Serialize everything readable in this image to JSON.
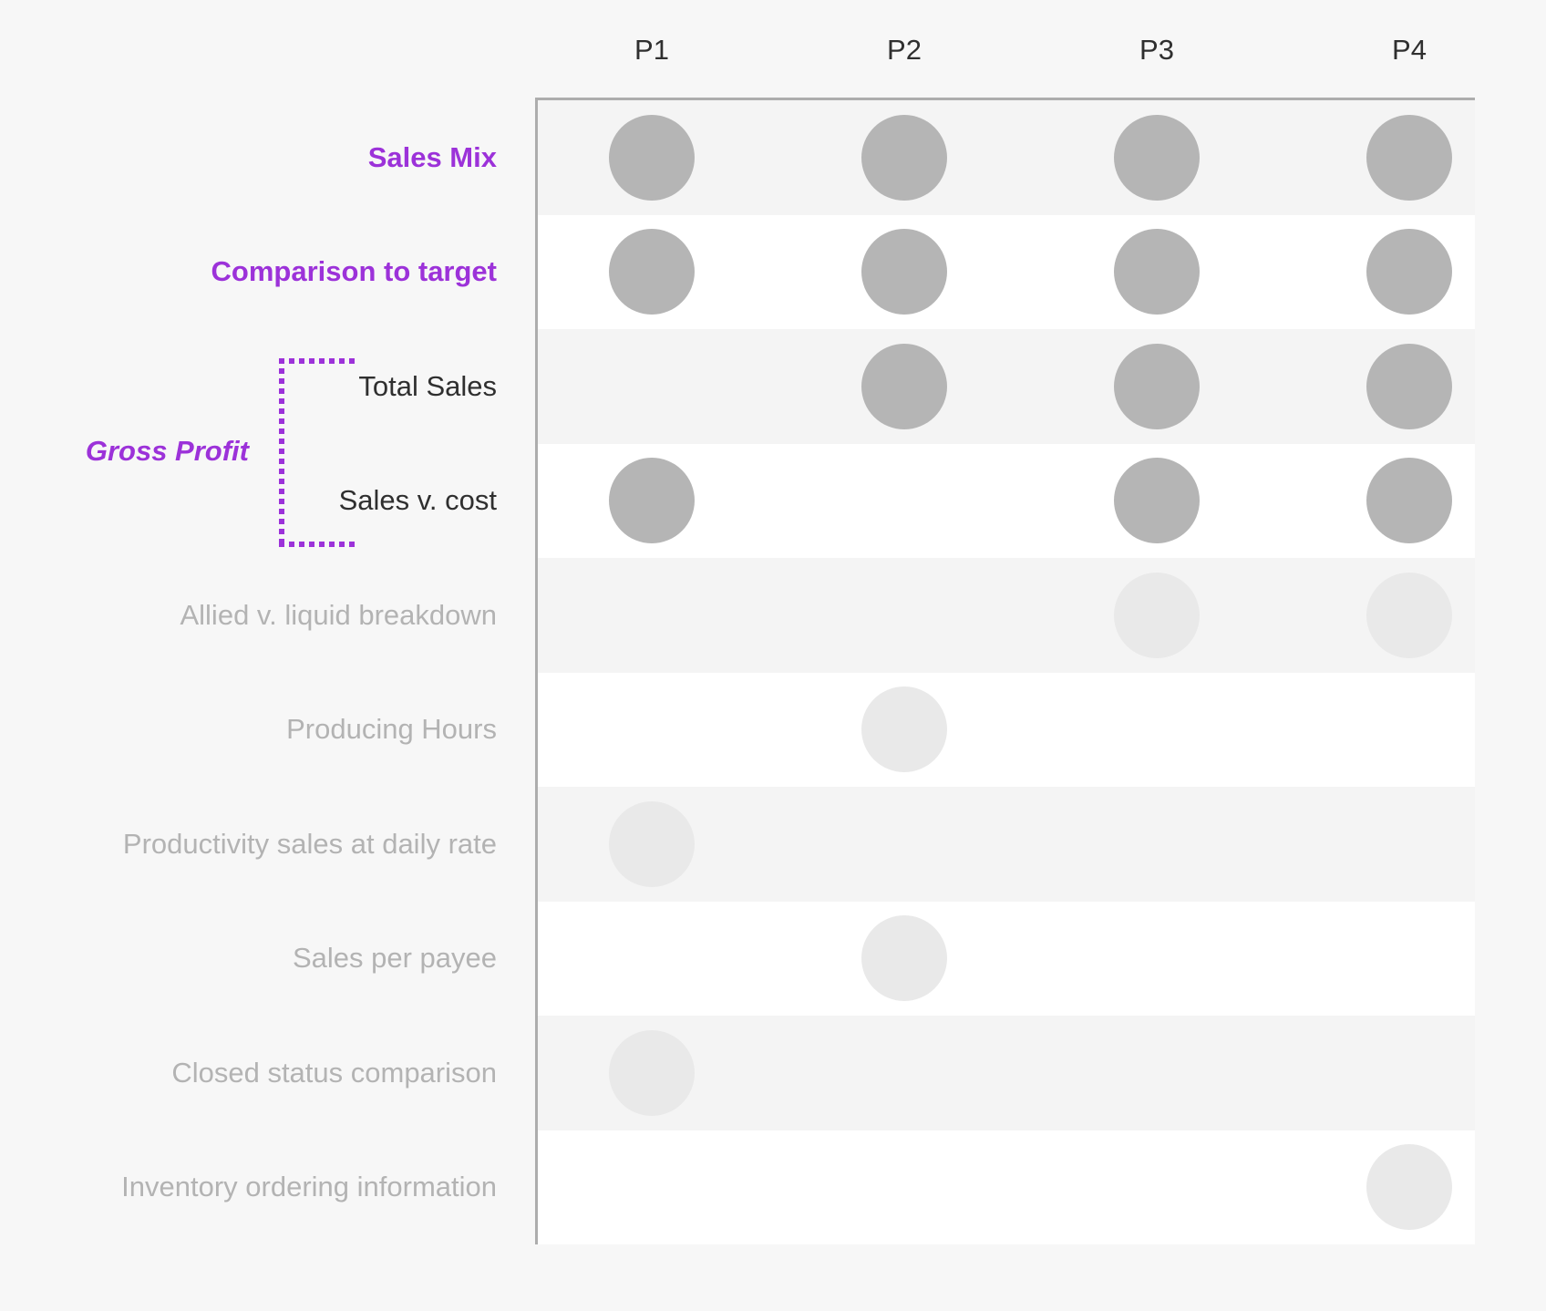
{
  "theme": {
    "page_bg": "#f7f7f7",
    "stripe_gray": "#f4f4f4",
    "stripe_white": "#ffffff",
    "axis_line": "#adadad",
    "dot_dark": "#b5b5b5",
    "dot_light": "#e9e9e9",
    "accent_purple": "#9c32d9",
    "text_dark": "#2f2f2f",
    "text_muted": "#b3b3b3"
  },
  "chart_data": {
    "type": "heatmap",
    "title": "",
    "columns": [
      "P1",
      "P2",
      "P3",
      "P4"
    ],
    "group_label": "Gross Profit",
    "grid": "striped-rows",
    "legend_position": "none",
    "rows": [
      {
        "label": "Sales Mix",
        "style": "highlight",
        "group": null,
        "dots": [
          "dark",
          "dark",
          "dark",
          "dark"
        ]
      },
      {
        "label": "Comparison to target",
        "style": "highlight",
        "group": null,
        "dots": [
          "dark",
          "dark",
          "dark",
          "dark"
        ]
      },
      {
        "label": "Total Sales",
        "style": "default",
        "group": "Gross Profit",
        "dots": [
          null,
          "dark",
          "dark",
          "dark"
        ]
      },
      {
        "label": "Sales v. cost",
        "style": "default",
        "group": "Gross Profit",
        "dots": [
          "dark",
          null,
          "dark",
          "dark"
        ]
      },
      {
        "label": "Allied v. liquid breakdown",
        "style": "muted",
        "group": null,
        "dots": [
          null,
          null,
          "light",
          "light"
        ]
      },
      {
        "label": "Producing Hours",
        "style": "muted",
        "group": null,
        "dots": [
          null,
          "light",
          null,
          null
        ]
      },
      {
        "label": "Productivity sales at daily rate",
        "style": "muted",
        "group": null,
        "dots": [
          "light",
          null,
          null,
          null
        ]
      },
      {
        "label": "Sales per payee",
        "style": "muted",
        "group": null,
        "dots": [
          null,
          "light",
          null,
          null
        ]
      },
      {
        "label": "Closed status comparison",
        "style": "muted",
        "group": null,
        "dots": [
          "light",
          null,
          null,
          null
        ]
      },
      {
        "label": "Inventory ordering information",
        "style": "muted",
        "group": null,
        "dots": [
          null,
          null,
          null,
          "light"
        ]
      }
    ]
  }
}
